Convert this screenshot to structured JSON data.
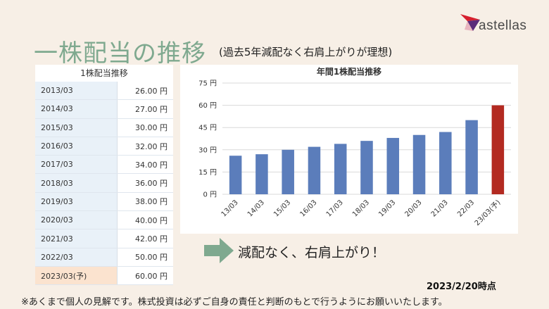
{
  "logo": {
    "text": "astellas",
    "icon": "star-logo-icon",
    "colors": {
      "red": "#d6202e",
      "purple": "#5a2a7a"
    }
  },
  "header": {
    "title": "一株配当の推移",
    "subtitle": "(過去5年減配なく右肩上がりが理想)"
  },
  "table": {
    "caption": "1株配当推移",
    "rows": [
      {
        "year": "2013/03",
        "value": "26.00 円"
      },
      {
        "year": "2014/03",
        "value": "27.00 円"
      },
      {
        "year": "2015/03",
        "value": "30.00 円"
      },
      {
        "year": "2016/03",
        "value": "32.00 円"
      },
      {
        "year": "2017/03",
        "value": "34.00 円"
      },
      {
        "year": "2018/03",
        "value": "36.00 円"
      },
      {
        "year": "2019/03",
        "value": "38.00 円"
      },
      {
        "year": "2020/03",
        "value": "40.00 円"
      },
      {
        "year": "2021/03",
        "value": "42.00 円"
      },
      {
        "year": "2022/03",
        "value": "50.00 円"
      },
      {
        "year": "2023/03(予)",
        "value": "60.00 円",
        "forecast": true
      }
    ]
  },
  "chart_data": {
    "type": "bar",
    "title": "年間1株配当推移",
    "categories": [
      "13/03",
      "14/03",
      "15/03",
      "16/03",
      "17/03",
      "18/03",
      "19/03",
      "20/03",
      "21/03",
      "22/03",
      "23/03(予)"
    ],
    "values": [
      26,
      27,
      30,
      32,
      34,
      36,
      38,
      40,
      42,
      50,
      60
    ],
    "ylim": [
      0,
      75
    ],
    "yticks": [
      0,
      15,
      30,
      45,
      60,
      75
    ],
    "ytick_labels": [
      "0 円",
      "15 円",
      "30 円",
      "45 円",
      "60 円",
      "75 円"
    ],
    "grid": true,
    "colors": {
      "bar": "#5b7dbb",
      "forecast_bar": "#b32a21",
      "grid": "#d9d9d9"
    }
  },
  "message": "減配なく、右肩上がり！",
  "arrow_icon": "right-arrow-icon",
  "as_of": "2023/2/20時点",
  "disclaimer": "※あくまで個人の見解です。株式投資は必ずご自身の責任と判断のもとで行うようにお願いいたします。"
}
